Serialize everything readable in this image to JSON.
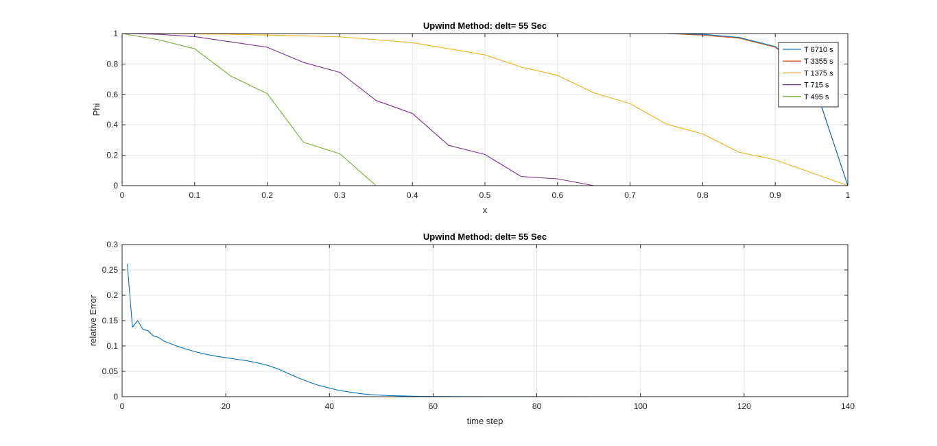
{
  "chart_data": [
    {
      "type": "line",
      "title": "Upwind Method: delt= 55 Sec",
      "xlabel": "x",
      "ylabel": "Phi",
      "xlim": [
        0,
        1
      ],
      "ylim": [
        0,
        1
      ],
      "xticks": [
        0,
        0.1,
        0.2,
        0.3,
        0.4,
        0.5,
        0.6,
        0.7,
        0.8,
        0.9,
        1
      ],
      "xtick_labels": [
        "0",
        "0.1",
        "0.2",
        "0.3",
        "0.4",
        "0.5",
        "0.6",
        "0.7",
        "0.8",
        "0.9",
        "1"
      ],
      "yticks": [
        0,
        0.2,
        0.4,
        0.6,
        0.8,
        1
      ],
      "ytick_labels": [
        "0",
        "0.2",
        "0.4",
        "0.6",
        "0.8",
        "1"
      ],
      "grid": true,
      "legend_position": "top-right",
      "series": [
        {
          "name": "T 6710 s",
          "color": "#0072BD",
          "x": [
            0,
            0.05,
            0.1,
            0.15,
            0.2,
            0.25,
            0.3,
            0.35,
            0.4,
            0.45,
            0.5,
            0.55,
            0.6,
            0.65,
            0.7,
            0.75,
            0.8,
            0.85,
            0.9,
            0.95,
            1
          ],
          "y": [
            1,
            1,
            1,
            1,
            1,
            1,
            1,
            1,
            1,
            1,
            1,
            1,
            1,
            1,
            1,
            1,
            0.995,
            0.975,
            0.915,
            0.72,
            0
          ]
        },
        {
          "name": "T 3355 s",
          "color": "#D95319",
          "x": [
            0,
            0.05,
            0.1,
            0.15,
            0.2,
            0.25,
            0.3,
            0.35,
            0.4,
            0.45,
            0.5,
            0.55,
            0.6,
            0.65,
            0.7,
            0.75,
            0.8,
            0.85,
            0.9,
            0.95,
            1
          ],
          "y": [
            1,
            1,
            1,
            1,
            1,
            1,
            1,
            1,
            1,
            1,
            1,
            1,
            1,
            1,
            1,
            1,
            0.99,
            0.97,
            0.91,
            0.715,
            0
          ]
        },
        {
          "name": "T 1375 s",
          "color": "#EDB120",
          "x": [
            0,
            0.05,
            0.1,
            0.15,
            0.2,
            0.25,
            0.3,
            0.35,
            0.4,
            0.45,
            0.5,
            0.55,
            0.6,
            0.65,
            0.7,
            0.75,
            0.8,
            0.85,
            0.9,
            0.95,
            1
          ],
          "y": [
            1,
            1,
            0.998,
            0.995,
            0.99,
            0.985,
            0.978,
            0.96,
            0.94,
            0.9,
            0.86,
            0.78,
            0.725,
            0.61,
            0.54,
            0.405,
            0.34,
            0.22,
            0.17,
            0.085,
            0
          ]
        },
        {
          "name": "T 715 s",
          "color": "#7E2F8E",
          "x": [
            0,
            0.05,
            0.1,
            0.15,
            0.2,
            0.25,
            0.3,
            0.35,
            0.4,
            0.45,
            0.5,
            0.55,
            0.6,
            0.65,
            0.7,
            0.75,
            0.8,
            0.85,
            0.9,
            0.95,
            1
          ],
          "y": [
            1,
            0.995,
            0.98,
            0.945,
            0.91,
            0.81,
            0.745,
            0.56,
            0.475,
            0.265,
            0.205,
            0.06,
            0.045,
            0,
            0,
            0,
            0,
            0,
            0,
            0,
            0
          ]
        },
        {
          "name": "T 495 s",
          "color": "#77AC30",
          "x": [
            0,
            0.05,
            0.1,
            0.15,
            0.2,
            0.25,
            0.3,
            0.35,
            0.4,
            0.45,
            0.5,
            0.55,
            0.6,
            0.65,
            0.7,
            0.75,
            0.8,
            0.85,
            0.9,
            0.95,
            1
          ],
          "y": [
            1,
            0.96,
            0.9,
            0.72,
            0.605,
            0.285,
            0.21,
            0,
            0,
            0,
            0,
            0,
            0,
            0,
            0,
            0,
            0,
            0,
            0,
            0,
            0
          ]
        }
      ]
    },
    {
      "type": "line",
      "title": "Upwind Method: delt= 55 Sec",
      "xlabel": "time step",
      "ylabel": "relative Error",
      "xlim": [
        0,
        140
      ],
      "ylim": [
        0,
        0.3
      ],
      "xticks": [
        0,
        20,
        40,
        60,
        80,
        100,
        120,
        140
      ],
      "xtick_labels": [
        "0",
        "20",
        "40",
        "60",
        "80",
        "100",
        "120",
        "140"
      ],
      "yticks": [
        0,
        0.05,
        0.1,
        0.15,
        0.2,
        0.25,
        0.3
      ],
      "ytick_labels": [
        "0",
        "0.05",
        "0.1",
        "0.15",
        "0.2",
        "0.25",
        "0.3"
      ],
      "grid": true,
      "series": [
        {
          "color": "#0072BD",
          "x": [
            1,
            2,
            3,
            4,
            5,
            6,
            7,
            8,
            10,
            12,
            14,
            16,
            18,
            20,
            22,
            24,
            26,
            28,
            30,
            32,
            34,
            36,
            38,
            40,
            42,
            44,
            46,
            48,
            50,
            52,
            54,
            56,
            58,
            60,
            65,
            70,
            80,
            90,
            100,
            110,
            120
          ],
          "y": [
            0.262,
            0.137,
            0.15,
            0.133,
            0.13,
            0.12,
            0.117,
            0.11,
            0.102,
            0.095,
            0.089,
            0.084,
            0.08,
            0.077,
            0.074,
            0.071,
            0.067,
            0.062,
            0.055,
            0.046,
            0.037,
            0.029,
            0.022,
            0.017,
            0.012,
            0.009,
            0.006,
            0.004,
            0.003,
            0.002,
            0.0015,
            0.001,
            0.0006,
            0.0004,
            0.0002,
            0.0001,
            5e-05,
            0,
            0,
            0,
            0
          ]
        }
      ]
    }
  ]
}
